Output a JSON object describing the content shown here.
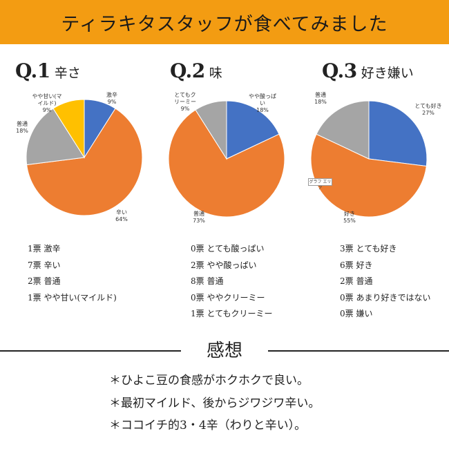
{
  "banner": {
    "title": "ティラキタスタッフが食べてみました"
  },
  "questions": [
    {
      "num": "Q.1",
      "subtitle": "辛さ"
    },
    {
      "num": "Q.2",
      "subtitle": "味"
    },
    {
      "num": "Q.3",
      "subtitle": "好き嫌い"
    }
  ],
  "chart_data": [
    {
      "type": "pie",
      "title": "",
      "slices": [
        {
          "label": [
            "激辛"
          ],
          "pct": "9%",
          "value": 9,
          "color": "#4472c4"
        },
        {
          "label": [
            "辛い"
          ],
          "pct": "64%",
          "value": 64,
          "color": "#ed7d31"
        },
        {
          "label": [
            "普通"
          ],
          "pct": "18%",
          "value": 18,
          "color": "#a5a5a5"
        },
        {
          "label": [
            "やや甘い(マ",
            "イルド)"
          ],
          "pct": "9%",
          "value": 9,
          "color": "#ffc000"
        }
      ]
    },
    {
      "type": "pie",
      "title": "",
      "slices": [
        {
          "label": [
            "とても酸っぱい"
          ],
          "pct": "",
          "value": 0,
          "color": "#5b9bd5"
        },
        {
          "label": [
            "やや酸っぱ",
            "い"
          ],
          "pct": "18%",
          "value": 18,
          "color": "#4472c4"
        },
        {
          "label": [
            "普通"
          ],
          "pct": "73%",
          "value": 73,
          "color": "#ed7d31"
        },
        {
          "label": [
            "ややクリーミー"
          ],
          "pct": "",
          "value": 0,
          "color": "#ffc000"
        },
        {
          "label": [
            "とてもク",
            "リーミー"
          ],
          "pct": "9%",
          "value": 9,
          "color": "#a5a5a5"
        }
      ]
    },
    {
      "type": "pie",
      "title": "",
      "slices": [
        {
          "label": [
            "とても好き"
          ],
          "pct": "27%",
          "value": 27,
          "color": "#4472c4"
        },
        {
          "label": [
            "好き"
          ],
          "pct": "55%",
          "value": 55,
          "color": "#ed7d31"
        },
        {
          "label": [
            "普通"
          ],
          "pct": "18%",
          "value": 18,
          "color": "#a5a5a5"
        },
        {
          "label": [
            "あまり好きではない"
          ],
          "pct": "",
          "value": 0,
          "color": "#ffc000"
        },
        {
          "label": [
            "嫌い"
          ],
          "pct": "",
          "value": 0,
          "color": "#5b9bd5"
        }
      ]
    }
  ],
  "chart_tag": "グラフ エリア",
  "votes": [
    [
      "1票 激辛",
      "7票 辛い",
      "2票 普通",
      "1票 やや甘い(マイルド)"
    ],
    [
      "0票 とても酸っぱい",
      "2票 やや酸っぱい",
      "8票 普通",
      "0票 ややクリーミー",
      "1票 とてもクリーミー"
    ],
    [
      "3票 とても好き",
      "6票 好き",
      "2票 普通",
      "0票 あまり好きではない",
      "0票 嫌い"
    ]
  ],
  "impressions": {
    "title": "感想",
    "comments": [
      "＊ひよこ豆の食感がホクホクで良い。",
      "＊最初マイルド、後からジワジワ辛い。",
      "＊ココイチ的3・4辛（わりと辛い）。"
    ]
  }
}
